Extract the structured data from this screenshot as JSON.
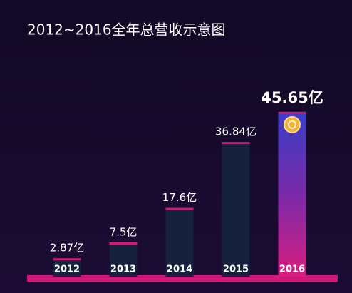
{
  "chart_data": {
    "type": "bar",
    "title": "2012~2016全年总营收示意图",
    "categories": [
      "2012",
      "2013",
      "2014",
      "2015",
      "2016"
    ],
    "values": [
      2.87,
      7.5,
      17.6,
      36.84,
      45.65
    ],
    "value_labels": [
      "2.87亿",
      "7.5亿",
      "17.6亿",
      "36.84亿",
      "45.65亿"
    ],
    "color": "#16213c"
  }
}
